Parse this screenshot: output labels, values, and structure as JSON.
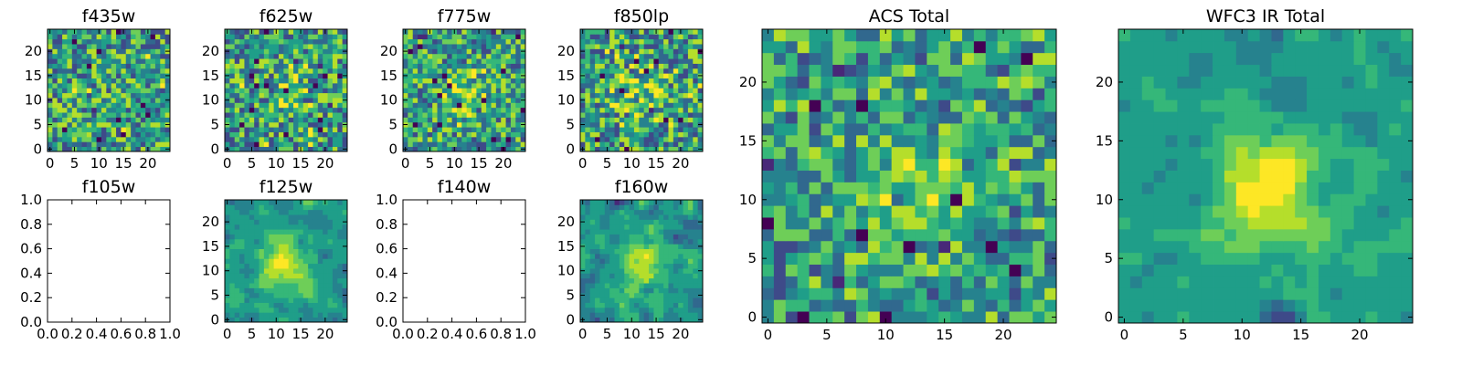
{
  "figure": {
    "background": "#ffffff"
  },
  "chart_data": [
    {
      "type": "heatmap",
      "title": "f435w",
      "grid": false,
      "size": 25,
      "empty": false,
      "seed": 11,
      "blob_strength": 0.05,
      "noise": 1.0,
      "blob_sigma": 4.5,
      "smooth": 0,
      "xticks": [
        0,
        5,
        10,
        15,
        20
      ],
      "yticks": [
        0,
        5,
        10,
        15,
        20
      ],
      "xlim": [
        -0.5,
        24.5
      ],
      "ylim": [
        -0.5,
        24.5
      ]
    },
    {
      "type": "heatmap",
      "title": "f625w",
      "grid": false,
      "size": 25,
      "empty": false,
      "seed": 23,
      "blob_strength": 0.2,
      "noise": 1.0,
      "blob_sigma": 4.5,
      "smooth": 0,
      "xticks": [
        0,
        5,
        10,
        15,
        20
      ],
      "yticks": [
        0,
        5,
        10,
        15,
        20
      ],
      "xlim": [
        -0.5,
        24.5
      ],
      "ylim": [
        -0.5,
        24.5
      ]
    },
    {
      "type": "heatmap",
      "title": "f775w",
      "grid": false,
      "size": 25,
      "empty": false,
      "seed": 37,
      "blob_strength": 0.45,
      "noise": 0.9,
      "blob_sigma": 4.0,
      "smooth": 0,
      "xticks": [
        0,
        5,
        10,
        15,
        20
      ],
      "yticks": [
        0,
        5,
        10,
        15,
        20
      ],
      "xlim": [
        -0.5,
        24.5
      ],
      "ylim": [
        -0.5,
        24.5
      ]
    },
    {
      "type": "heatmap",
      "title": "f850lp",
      "grid": false,
      "size": 25,
      "empty": false,
      "seed": 41,
      "blob_strength": 0.3,
      "noise": 1.0,
      "blob_sigma": 4.5,
      "smooth": 0,
      "xticks": [
        0,
        5,
        10,
        15,
        20
      ],
      "yticks": [
        0,
        5,
        10,
        15,
        20
      ],
      "xlim": [
        -0.5,
        24.5
      ],
      "ylim": [
        -0.5,
        24.5
      ]
    },
    {
      "type": "heatmap",
      "title": "f105w",
      "grid": false,
      "empty": true,
      "xticks": [
        "0.0",
        "0.2",
        "0.4",
        "0.6",
        "0.8",
        "1.0"
      ],
      "yticks": [
        "0.0",
        "0.2",
        "0.4",
        "0.6",
        "0.8",
        "1.0"
      ],
      "xlim": [
        0,
        1
      ],
      "ylim": [
        0,
        1
      ]
    },
    {
      "type": "heatmap",
      "title": "f125w",
      "grid": false,
      "size": 25,
      "empty": false,
      "seed": 53,
      "blob_strength": 0.9,
      "noise": 0.75,
      "blob_sigma": 3.5,
      "smooth": 1,
      "xticks": [
        0,
        5,
        10,
        15,
        20
      ],
      "yticks": [
        0,
        5,
        10,
        15,
        20
      ],
      "xlim": [
        -0.5,
        24.5
      ],
      "ylim": [
        -0.5,
        24.5
      ]
    },
    {
      "type": "heatmap",
      "title": "f140w",
      "grid": false,
      "empty": true,
      "xticks": [
        "0.0",
        "0.2",
        "0.4",
        "0.6",
        "0.8",
        "1.0"
      ],
      "yticks": [
        "0.0",
        "0.2",
        "0.4",
        "0.6",
        "0.8",
        "1.0"
      ],
      "xlim": [
        0,
        1
      ],
      "ylim": [
        0,
        1
      ]
    },
    {
      "type": "heatmap",
      "title": "f160w",
      "grid": false,
      "size": 25,
      "empty": false,
      "seed": 67,
      "blob_strength": 0.8,
      "noise": 0.85,
      "blob_sigma": 3.5,
      "smooth": 1,
      "xticks": [
        0,
        5,
        10,
        15,
        20
      ],
      "yticks": [
        0,
        5,
        10,
        15,
        20
      ],
      "xlim": [
        -0.5,
        24.5
      ],
      "ylim": [
        -0.5,
        24.5
      ]
    },
    {
      "type": "heatmap",
      "title": "ACS Total",
      "grid": false,
      "size": 25,
      "empty": false,
      "seed": 79,
      "blob_strength": 0.55,
      "noise": 0.8,
      "blob_sigma": 3.0,
      "smooth": 0,
      "xticks": [
        0,
        5,
        10,
        15,
        20
      ],
      "yticks": [
        0,
        5,
        10,
        15,
        20
      ],
      "xlim": [
        -0.5,
        24.5
      ],
      "ylim": [
        -0.5,
        24.5
      ]
    },
    {
      "type": "heatmap",
      "title": "WFC3 IR Total",
      "grid": false,
      "size": 25,
      "empty": false,
      "seed": 97,
      "blob_strength": 1.0,
      "noise": 0.55,
      "blob_sigma": 3.2,
      "smooth": 1,
      "xticks": [
        0,
        5,
        10,
        15,
        20
      ],
      "yticks": [
        0,
        5,
        10,
        15,
        20
      ],
      "xlim": [
        -0.5,
        24.5
      ],
      "ylim": [
        -0.5,
        24.5
      ]
    }
  ],
  "colormap": [
    "#440154",
    "#482878",
    "#3e4a89",
    "#31688e",
    "#26828e",
    "#1f9e89",
    "#35b779",
    "#6ece58",
    "#b5de2b",
    "#fde725"
  ]
}
